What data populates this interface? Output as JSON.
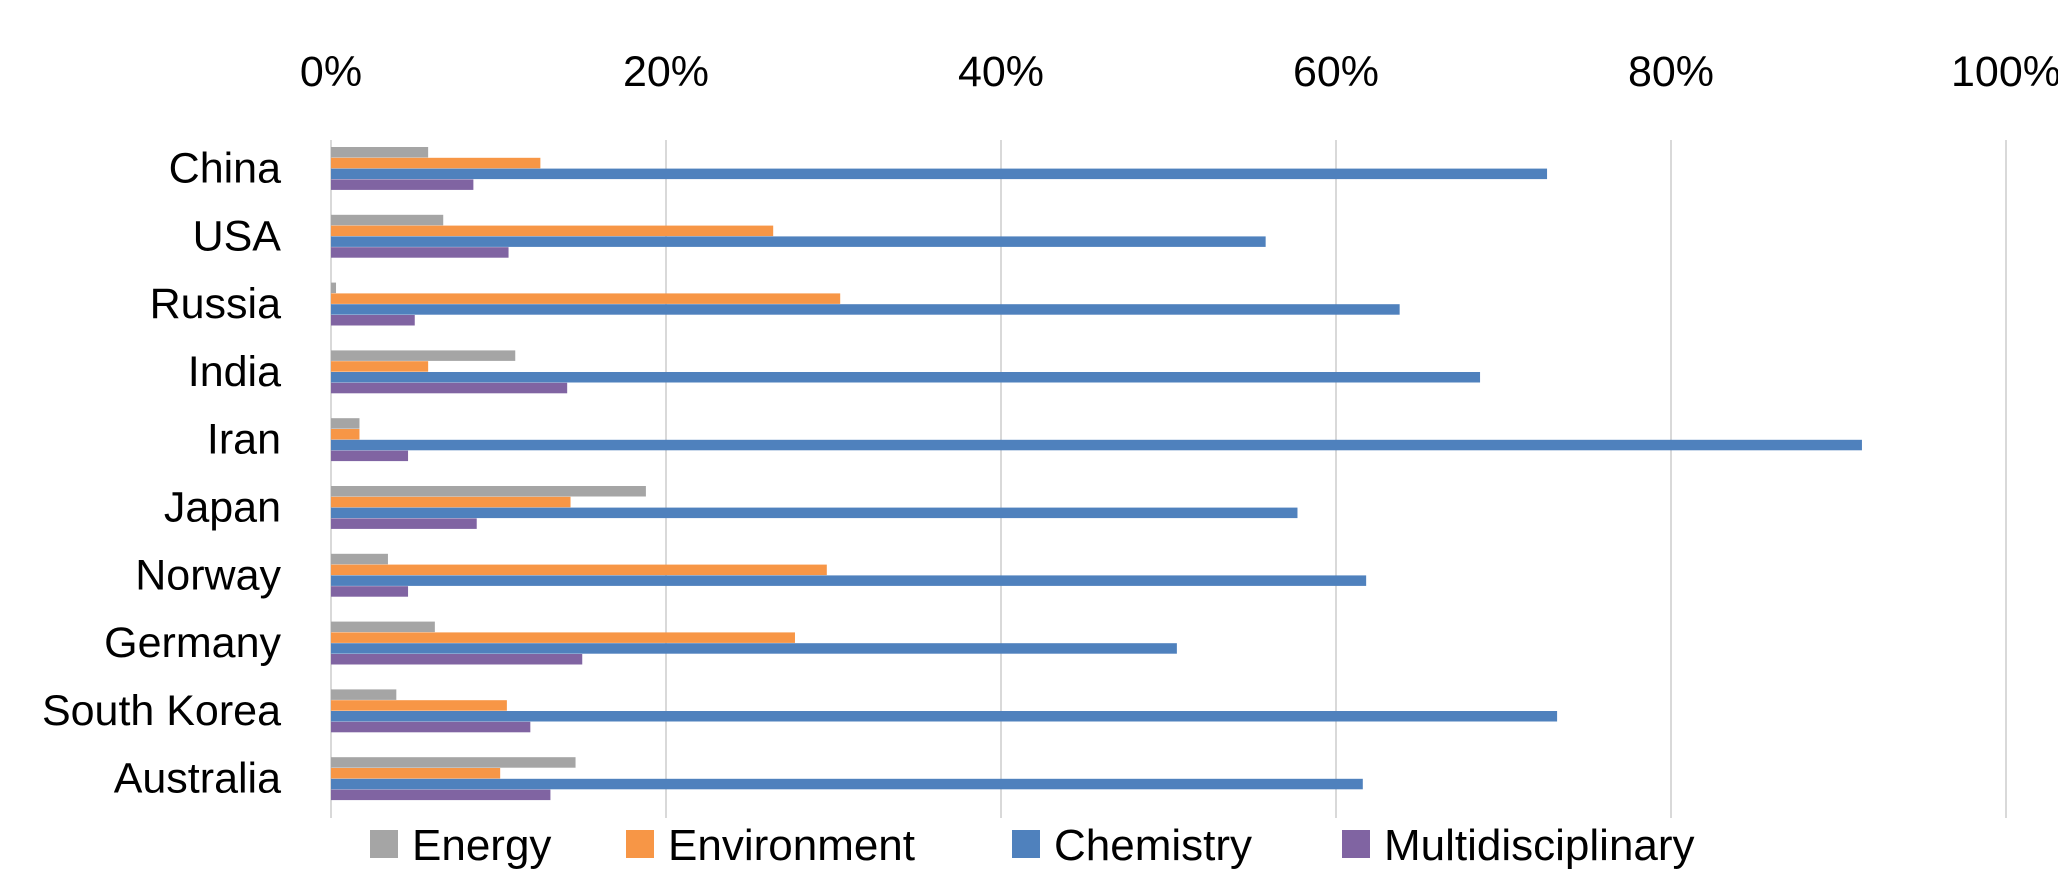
{
  "chart_data": {
    "type": "bar",
    "orientation": "horizontal",
    "categories": [
      "China",
      "USA",
      "Russia",
      "India",
      "Iran",
      "Japan",
      "Norway",
      "Germany",
      "South Korea",
      "Australia"
    ],
    "series": [
      {
        "name": "Energy",
        "color": "#A5A5A5",
        "values": [
          5.8,
          6.7,
          0.3,
          11.0,
          1.7,
          18.8,
          3.4,
          6.2,
          3.9,
          14.6
        ]
      },
      {
        "name": "Environment",
        "color": "#F79646",
        "values": [
          12.5,
          26.4,
          30.4,
          5.8,
          1.7,
          14.3,
          29.6,
          27.7,
          10.5,
          10.1
        ]
      },
      {
        "name": "Chemistry",
        "color": "#4F81BD",
        "values": [
          72.6,
          55.8,
          63.8,
          68.6,
          91.4,
          57.7,
          61.8,
          50.5,
          73.2,
          61.6
        ]
      },
      {
        "name": "Multidisciplinary",
        "color": "#8064A2",
        "values": [
          8.5,
          10.6,
          5.0,
          14.1,
          4.6,
          8.7,
          4.6,
          15.0,
          11.9,
          13.1
        ]
      }
    ],
    "xlim": [
      0,
      100
    ],
    "xticks": [
      0,
      20,
      40,
      60,
      80,
      100
    ],
    "xtick_labels": [
      "0%",
      "20%",
      "40%",
      "60%",
      "80%",
      "100%"
    ],
    "x_axis_position": "top",
    "legend_position": "bottom",
    "grid": true,
    "title": "",
    "xlabel": "",
    "ylabel": ""
  }
}
